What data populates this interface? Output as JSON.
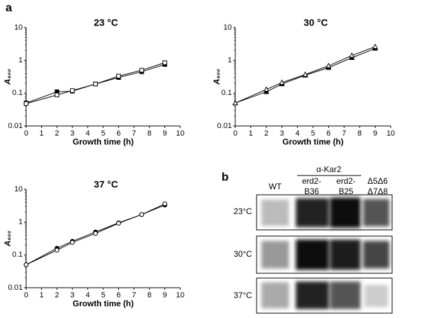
{
  "panel_labels": [
    "a",
    "b"
  ],
  "chart_data": [
    {
      "type": "line",
      "title": "23 °C",
      "xlabel": "Growth time (h)",
      "ylabel": "A₆₀₀",
      "yscale": "log",
      "xlim": [
        0,
        10
      ],
      "xticks": [
        0,
        1,
        2,
        3,
        4,
        5,
        6,
        7,
        8,
        9,
        10
      ],
      "ylim": [
        0.01,
        10
      ],
      "yticks": [
        0.01,
        0.1,
        1,
        10
      ],
      "x": [
        0,
        2,
        3,
        4.5,
        6,
        7.5,
        9
      ],
      "series": [
        {
          "color": "#000000",
          "marker": "square",
          "filled": true,
          "values": [
            0.05,
            0.11,
            0.115,
            0.19,
            0.3,
            0.45,
            0.75
          ]
        },
        {
          "color": "#000000",
          "marker": "square",
          "filled": false,
          "values": [
            0.048,
            0.088,
            0.12,
            0.19,
            0.33,
            0.5,
            0.85
          ]
        }
      ]
    },
    {
      "type": "line",
      "title": "30 °C",
      "xlabel": "Growth time (h)",
      "ylabel": "A₆₀₀",
      "yscale": "log",
      "xlim": [
        0,
        10
      ],
      "xticks": [
        0,
        1,
        2,
        3,
        4,
        5,
        6,
        7,
        8,
        9,
        10
      ],
      "ylim": [
        0.01,
        10
      ],
      "yticks": [
        0.01,
        0.1,
        1,
        10
      ],
      "x": [
        0,
        2,
        3,
        4.5,
        6,
        7.5,
        9
      ],
      "series": [
        {
          "color": "#000000",
          "marker": "triangle",
          "filled": true,
          "values": [
            0.05,
            0.11,
            0.19,
            0.35,
            0.6,
            1.2,
            2.3
          ]
        },
        {
          "color": "#000000",
          "marker": "triangle",
          "filled": false,
          "values": [
            0.05,
            0.13,
            0.21,
            0.37,
            0.68,
            1.4,
            2.6
          ]
        }
      ]
    },
    {
      "type": "line",
      "title": "37 °C",
      "xlabel": "Growth time (h)",
      "ylabel": "A₆₀₀",
      "yscale": "log",
      "xlim": [
        0,
        10
      ],
      "xticks": [
        0,
        1,
        2,
        3,
        4,
        5,
        6,
        7,
        8,
        9,
        10
      ],
      "ylim": [
        0.01,
        10
      ],
      "yticks": [
        0.01,
        0.1,
        1,
        10
      ],
      "x": [
        0,
        2,
        3,
        4.5,
        6,
        7.5,
        9
      ],
      "series": [
        {
          "color": "#000000",
          "marker": "circle",
          "filled": true,
          "values": [
            0.05,
            0.16,
            0.26,
            0.5,
            0.95,
            1.7,
            3.3
          ]
        },
        {
          "color": "#000000",
          "marker": "circle",
          "filled": false,
          "values": [
            0.05,
            0.14,
            0.24,
            0.45,
            0.92,
            1.7,
            3.6
          ]
        }
      ]
    }
  ],
  "blot": {
    "antibody": "α-Kar2",
    "columns": [
      [
        "WT"
      ],
      [
        "erd2-",
        "B36"
      ],
      [
        "erd2-",
        "B25"
      ],
      [
        "Δ5Δ6",
        "Δ7Δ8"
      ]
    ],
    "rows": [
      "23°C",
      "30°C",
      "37°C"
    ]
  }
}
